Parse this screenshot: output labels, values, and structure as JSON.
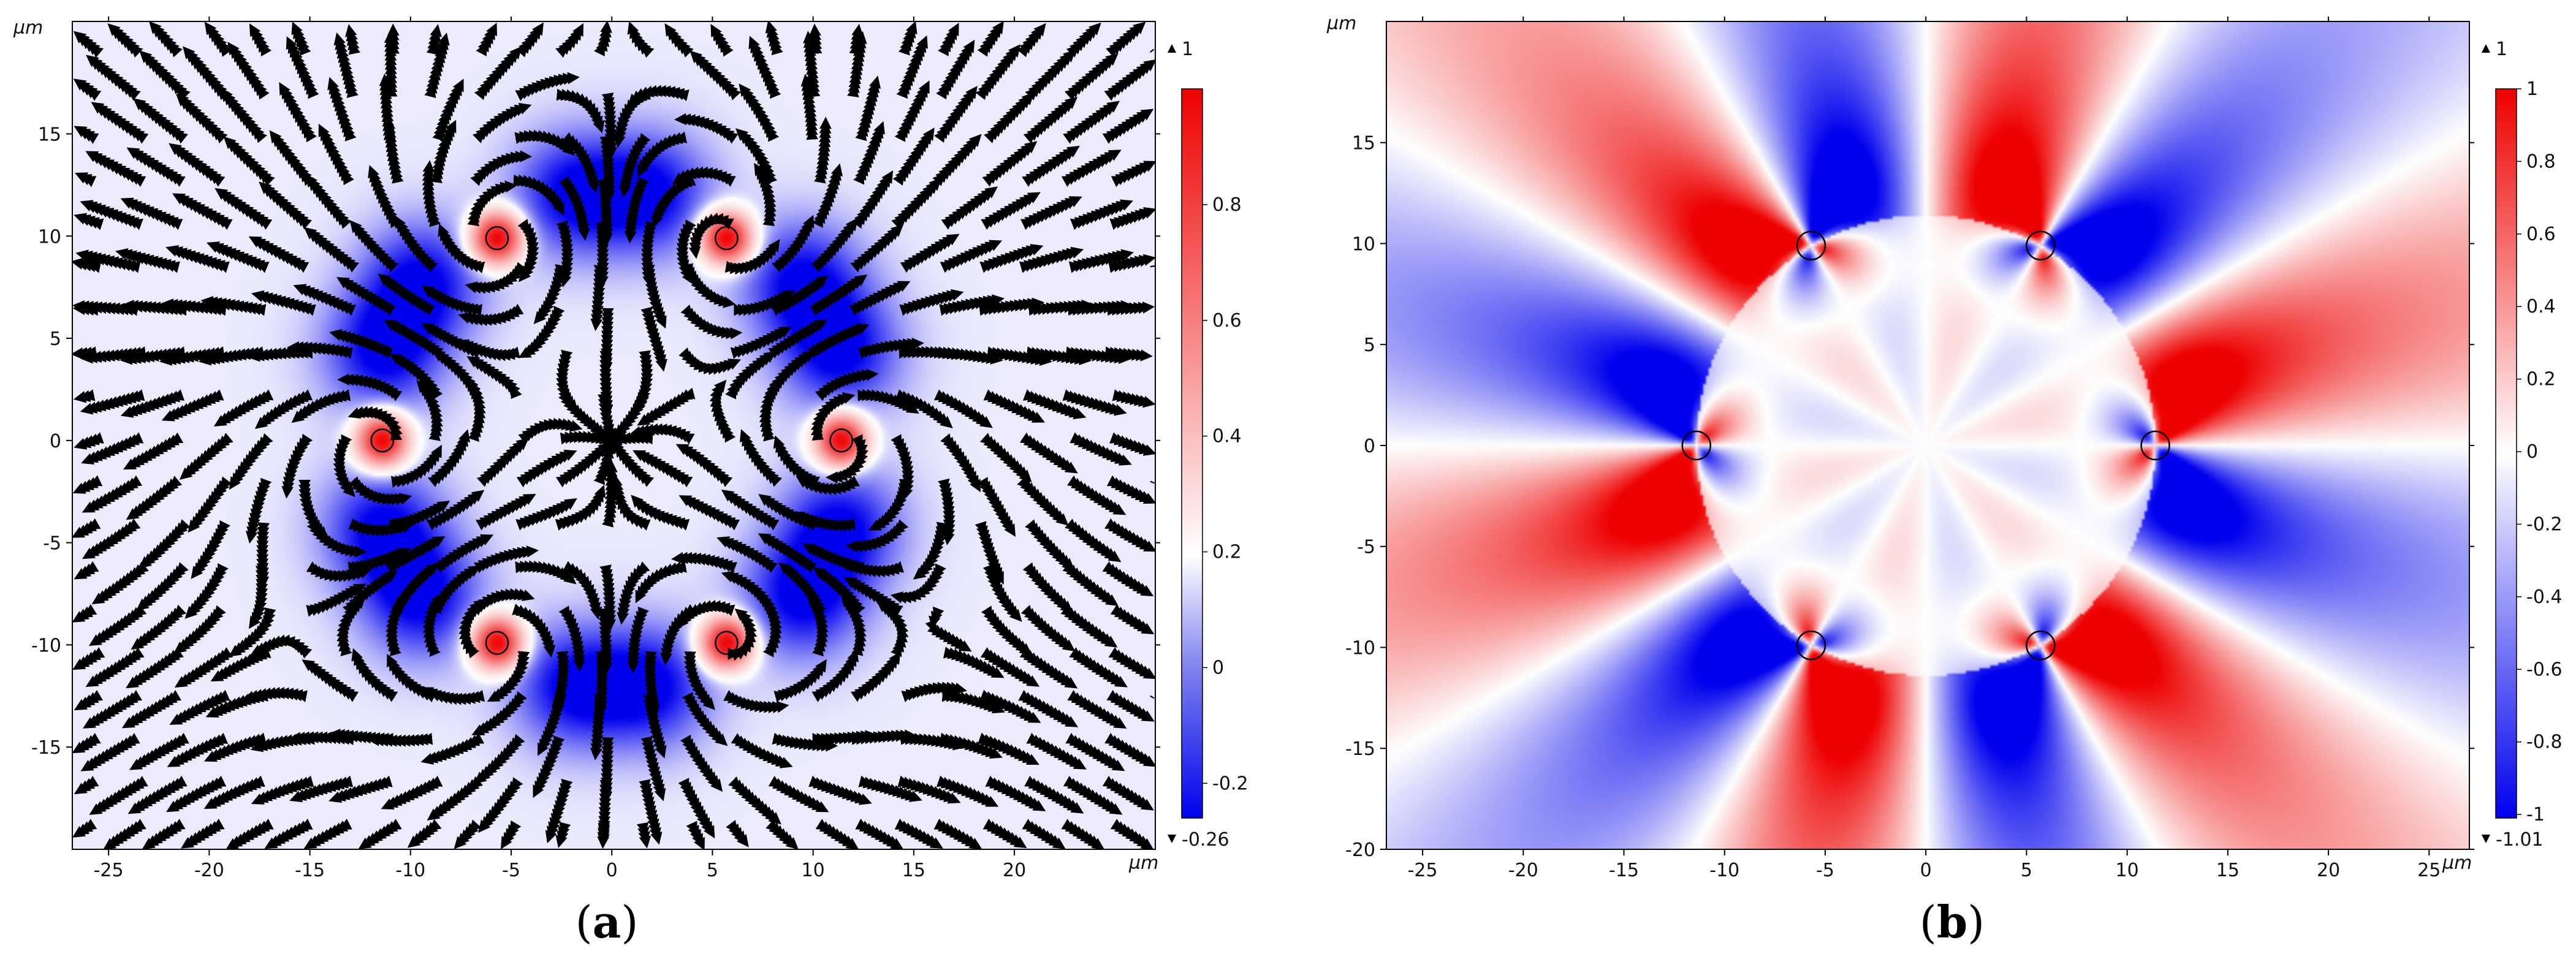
{
  "chart_data": [
    {
      "type": "heatmap",
      "panel_label": "a",
      "axis_unit": "µm",
      "xlim": [
        -26.8,
        27
      ],
      "ylim": [
        -20,
        20.5
      ],
      "x_ticks": [
        -25,
        -20,
        -15,
        -10,
        -5,
        0,
        5,
        10,
        15,
        20
      ],
      "y_ticks": [
        -15,
        -10,
        -5,
        0,
        5,
        10,
        15
      ],
      "colorbar": {
        "max_label": "1",
        "min_label": "-0.26",
        "ticks": [
          -0.2,
          0,
          0.2,
          0.4,
          0.6,
          0.8
        ],
        "range": [
          -0.26,
          1
        ],
        "colors": [
          "#0000ee",
          "#ffffff",
          "#ee0000"
        ]
      },
      "streamlines": true,
      "background_value": 0.0,
      "features": [
        {
          "type": "hot-spot",
          "x": 0,
          "y": 11.4
        },
        {
          "type": "hot-spot",
          "x": 0,
          "y": -11.4
        }
      ],
      "circle_positions": [
        {
          "x": 11.4,
          "y": 0
        },
        {
          "x": 5.7,
          "y": 9.9
        },
        {
          "x": -5.7,
          "y": 9.9
        },
        {
          "x": -11.4,
          "y": 0
        },
        {
          "x": -5.7,
          "y": -9.9
        },
        {
          "x": 5.7,
          "y": -9.9
        }
      ]
    },
    {
      "type": "heatmap",
      "panel_label": "b",
      "axis_unit": "µm",
      "xlim": [
        -26.8,
        27
      ],
      "ylim": [
        -20,
        21
      ],
      "x_ticks": [
        -25,
        -20,
        -15,
        -10,
        -5,
        0,
        5,
        10,
        15,
        20,
        25
      ],
      "y_ticks": [
        -20,
        -15,
        -10,
        -5,
        0,
        5,
        10,
        15
      ],
      "colorbar": {
        "max_label": "1",
        "min_label": "-1.01",
        "ticks": [
          -1,
          -0.8,
          -0.6,
          -0.4,
          -0.2,
          0,
          0.2,
          0.4,
          0.6,
          0.8,
          1
        ],
        "range": [
          -1.01,
          1
        ],
        "colors": [
          "#0000ee",
          "#ffffff",
          "#ee0000"
        ]
      },
      "streamlines": false,
      "circle_radius": 0.7,
      "circle_positions": [
        {
          "x": 11.4,
          "y": 0
        },
        {
          "x": 5.7,
          "y": 9.9
        },
        {
          "x": -5.7,
          "y": 9.9
        },
        {
          "x": -11.4,
          "y": 0
        },
        {
          "x": -5.7,
          "y": -9.9
        },
        {
          "x": 5.7,
          "y": -9.9
        }
      ]
    }
  ]
}
